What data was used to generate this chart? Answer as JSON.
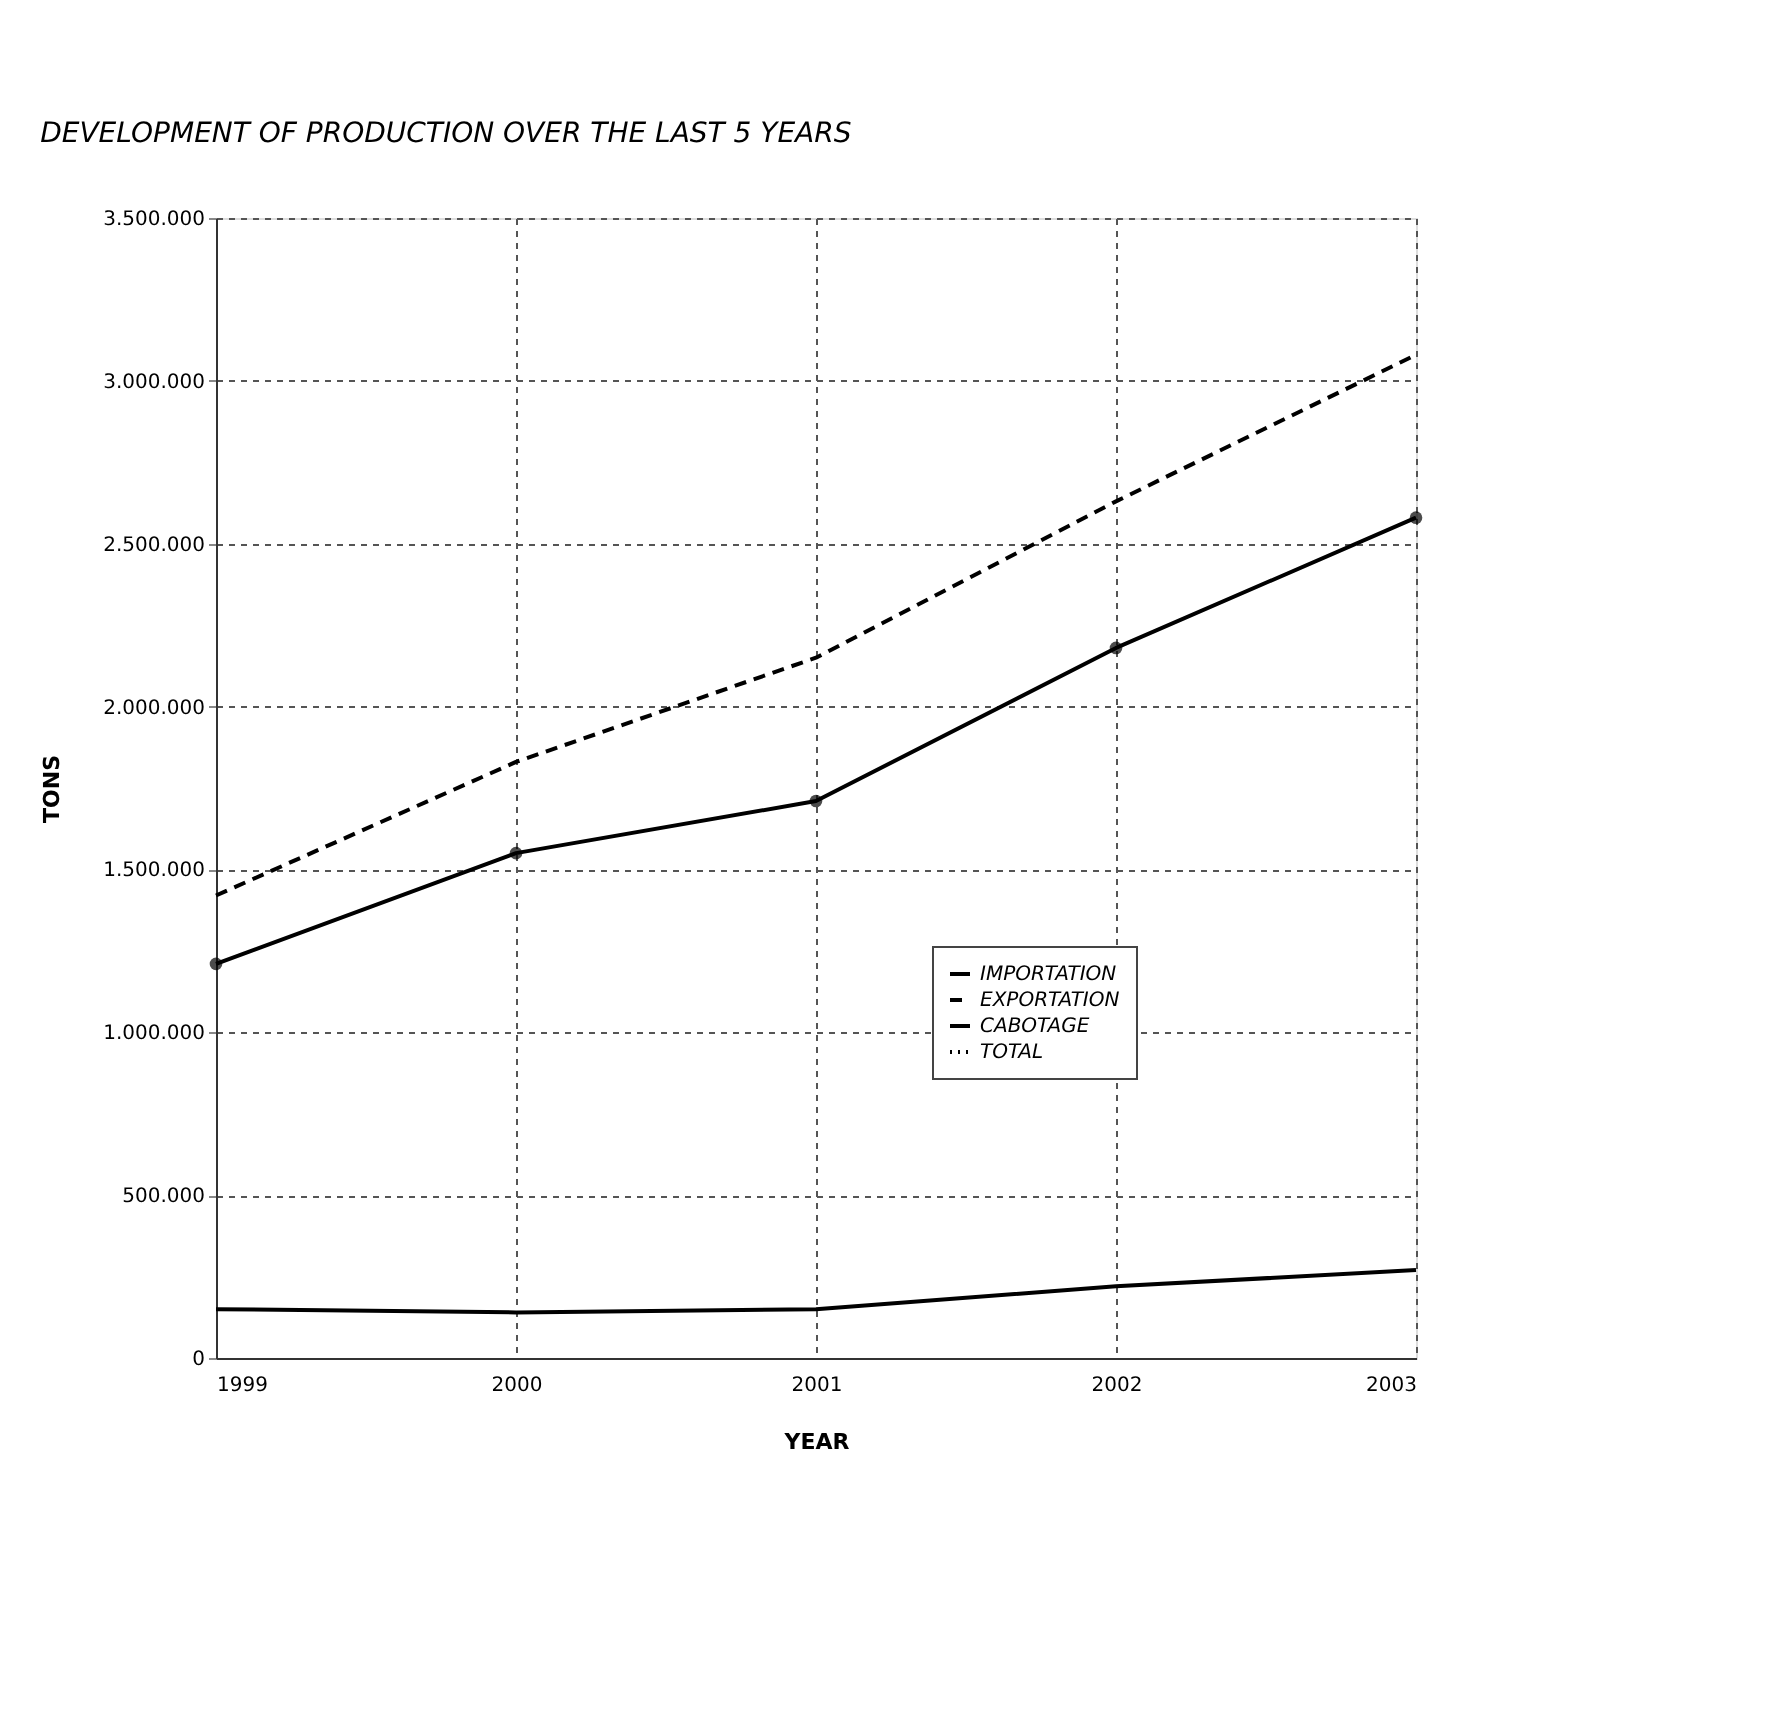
{
  "chart_data": {
    "type": "line",
    "title": "DEVELOPMENT OF PRODUCTION OVER THE LAST 5 YEARS",
    "xlabel": "YEAR",
    "ylabel": "TONS",
    "x": [
      1999,
      2000,
      2001,
      2002,
      2003
    ],
    "series": [
      {
        "name": "IMPORTATION",
        "color": "#000000",
        "values": [
          1210000,
          1550000,
          1710000,
          2180000,
          2580000
        ],
        "marker": "circle",
        "line_style": "solid"
      },
      {
        "name": "EXPORTATION",
        "color": "#000000",
        "values": [
          1420000,
          1830000,
          2150000,
          2630000,
          3080000
        ],
        "marker": "none",
        "line_style": "dashed"
      },
      {
        "name": "CABOTAGE",
        "color": "#000000",
        "values": [
          150000,
          140000,
          150000,
          220000,
          270000
        ],
        "marker": "none",
        "line_style": "solid"
      },
      {
        "name": "TOTAL",
        "color": "#000000",
        "values": [
          null,
          null,
          null,
          null,
          null
        ],
        "marker": "circle",
        "line_style": "dotted"
      }
    ],
    "xlim": [
      1999,
      2003
    ],
    "xticks": [
      1999,
      2000,
      2001,
      2002,
      2003
    ],
    "ylim": [
      0,
      3500000
    ],
    "yticks": [
      {
        "value": 0,
        "label": "0"
      },
      {
        "value": 500000,
        "label": "500.000"
      },
      {
        "value": 1000000,
        "label": "1.000.000"
      },
      {
        "value": 1500000,
        "label": "1.500.000"
      },
      {
        "value": 2000000,
        "label": "2.000.000"
      },
      {
        "value": 2500000,
        "label": "2.500.000"
      },
      {
        "value": 3000000,
        "label": "3.000.000"
      },
      {
        "value": 3500000,
        "label": "3.500.000"
      }
    ],
    "grid": true,
    "legend": "bottom right"
  }
}
